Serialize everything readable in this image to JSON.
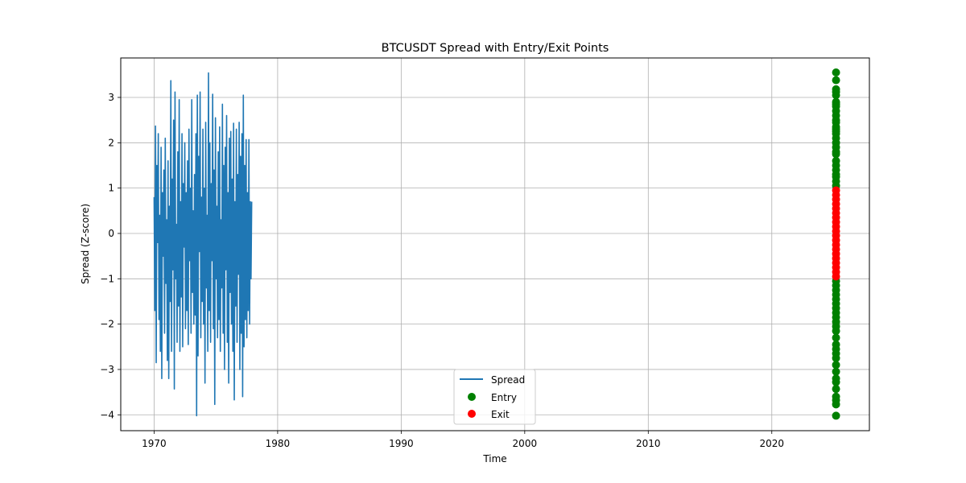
{
  "chart_data": {
    "type": "line",
    "title": "BTCUSDT Spread with Entry/Exit Points",
    "xlabel": "Time",
    "ylabel": "Spread (Z-score)",
    "xlim": [
      1967.3,
      2027.9
    ],
    "ylim": [
      -4.35,
      3.87
    ],
    "xticks": [
      1970,
      1980,
      1990,
      2000,
      2010,
      2020
    ],
    "yticks": [
      -4,
      -3,
      -2,
      -1,
      0,
      1,
      2,
      3
    ],
    "grid": true,
    "legend_position": "lower center",
    "colors": {
      "spread": "#1f77b4",
      "entry": "#008000",
      "exit": "#ff0000"
    },
    "series": [
      {
        "name": "Spread",
        "kind": "line",
        "x_range": [
          1970.0,
          1977.9
        ],
        "y": [
          0.8,
          -1.7,
          2.37,
          -2.85,
          1.5,
          -0.2,
          2.2,
          -1.9,
          0.4,
          -2.6,
          1.9,
          -3.2,
          0.9,
          -0.5,
          1.4,
          -2.2,
          2.1,
          -1.1,
          0.3,
          -2.8,
          1.6,
          -3.2,
          0.6,
          -1.5,
          3.37,
          -2.6,
          1.2,
          -0.8,
          2.5,
          -3.43,
          3.12,
          -1.0,
          0.2,
          -2.4,
          1.8,
          -1.6,
          2.95,
          -2.6,
          0.7,
          -1.4,
          2.2,
          -2.5,
          1.1,
          -0.3,
          2.0,
          -2.1,
          0.9,
          -1.7,
          1.6,
          -2.45,
          2.3,
          -0.6,
          1.0,
          -2.2,
          2.95,
          -1.3,
          0.5,
          -2.0,
          1.3,
          -1.8,
          2.2,
          -4.02,
          3.05,
          -2.7,
          1.7,
          -0.4,
          3.12,
          -2.3,
          0.8,
          -1.5,
          2.3,
          -2.0,
          1.0,
          -3.3,
          2.45,
          -1.2,
          0.4,
          -2.6,
          3.54,
          -1.7,
          2.0,
          -2.4,
          1.1,
          -0.6,
          3.07,
          -2.1,
          1.4,
          -3.77,
          2.55,
          -1.0,
          0.6,
          -2.3,
          1.8,
          -1.9,
          2.35,
          -2.6,
          0.3,
          -1.2,
          2.85,
          -2.2,
          1.5,
          -3.0,
          1.9,
          -0.8,
          2.6,
          -2.4,
          0.9,
          -3.3,
          2.1,
          -1.3,
          2.25,
          -2.0,
          1.2,
          -2.6,
          2.43,
          -3.67,
          0.7,
          -1.6,
          2.3,
          -2.4,
          1.3,
          -0.9,
          2.45,
          -3.0,
          1.7,
          -2.2,
          2.2,
          -3.6,
          3.05,
          -2.5,
          1.5,
          -1.9,
          2.07,
          -2.3,
          0.9,
          -1.7,
          2.07,
          -2.0,
          0.7,
          -1.0,
          0.7
        ]
      },
      {
        "name": "Entry",
        "kind": "scatter",
        "x": 2025.2,
        "y": [
          3.55,
          3.38,
          3.18,
          3.12,
          3.05,
          2.9,
          2.85,
          2.8,
          2.7,
          2.6,
          2.5,
          2.45,
          2.35,
          2.3,
          2.25,
          2.2,
          2.1,
          2.0,
          1.9,
          1.8,
          1.75,
          1.6,
          1.5,
          1.4,
          1.3,
          1.25,
          1.15,
          1.05,
          -1.05,
          -1.15,
          -1.25,
          -1.35,
          -1.45,
          -1.55,
          -1.65,
          -1.75,
          -1.85,
          -1.95,
          -2.05,
          -2.15,
          -2.3,
          -2.45,
          -2.55,
          -2.65,
          -2.75,
          -2.9,
          -3.05,
          -3.2,
          -3.28,
          -3.43,
          -3.6,
          -3.68,
          -3.77,
          -4.02
        ]
      },
      {
        "name": "Exit",
        "kind": "scatter",
        "x": 2025.2,
        "y": [
          0.95,
          0.85,
          0.75,
          0.65,
          0.55,
          0.45,
          0.35,
          0.25,
          0.15,
          0.05,
          -0.05,
          -0.15,
          -0.25,
          -0.35,
          -0.45,
          -0.55,
          -0.65,
          -0.75,
          -0.85,
          -0.95
        ]
      }
    ]
  }
}
